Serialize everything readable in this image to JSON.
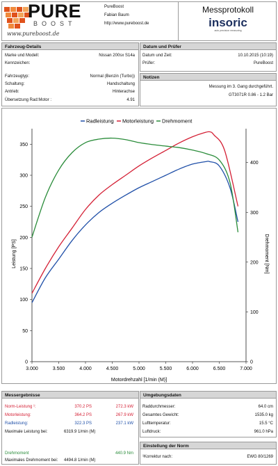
{
  "header": {
    "brand_line1": "PURE",
    "brand_line2": "BOOST",
    "brand_script": "www.pureboost.de",
    "company": "PureBoost",
    "contact": "Fabian Baum",
    "url": "http://www.pureboost.de",
    "protocol_title": "Messprotokoll",
    "logo_text": "insoric",
    "logo_tagline": "auto precision measuring"
  },
  "vehicle": {
    "section_title": "Fahrzeug-Details",
    "fields": [
      {
        "label": "Marke und Modell:",
        "value": "Nissan 200sx S14a"
      },
      {
        "label": "Kennzeichen:",
        "value": ""
      },
      {
        "label": "Fahrzeugtyp:",
        "value": "Normal (Benzin (Turbo))"
      },
      {
        "label": "Schaltung:",
        "value": "Handschaltung"
      },
      {
        "label": "Antrieb:",
        "value": "Hinterachse"
      },
      {
        "label": "Übersetzung Rad:Motor :",
        "value": "4.91"
      }
    ]
  },
  "test": {
    "section_title": "Datum und Prüfer",
    "fields": [
      {
        "label": "Datum und Zeit:",
        "value": "10.10.2015 (10:19)"
      },
      {
        "label": "Prüfer:",
        "value": "PureBoost"
      }
    ]
  },
  "notes": {
    "section_title": "Notizen",
    "line1": "Messung im 3. Gang durchgeführt.",
    "line2": "GT3071R 0.86 - 1.2 Bar"
  },
  "chart_data": {
    "type": "line",
    "xlabel": "Motordrehzahl [1/min (M)]",
    "ylabel": "Leistung [PS]",
    "y2label": "Drehmoment [Nm]",
    "xlim": [
      3000,
      7000
    ],
    "ylim": [
      0,
      375
    ],
    "y2lim": [
      0,
      468
    ],
    "xticks": [
      "3.000",
      "3.500",
      "4.000",
      "4.500",
      "5.000",
      "5.500",
      "6.000",
      "6.500",
      "7.000"
    ],
    "yticks": [
      0,
      50,
      100,
      150,
      200,
      250,
      300,
      350
    ],
    "y2ticks": [
      0,
      100,
      200,
      300,
      400
    ],
    "legend_position": "top",
    "colors": {
      "Radleistung": "#1f4fa8",
      "Motorleistung": "#d42035",
      "Drehmoment": "#2a8c3a"
    },
    "series": [
      {
        "name": "Radleistung",
        "axis": "left",
        "x": [
          3000,
          3250,
          3500,
          3750,
          4000,
          4250,
          4500,
          4750,
          5000,
          5250,
          5500,
          5750,
          6000,
          6250,
          6320,
          6500,
          6700,
          6850
        ],
        "y": [
          95,
          135,
          165,
          195,
          220,
          240,
          255,
          268,
          280,
          290,
          300,
          310,
          318,
          322,
          322,
          315,
          280,
          225
        ]
      },
      {
        "name": "Motorleistung",
        "axis": "left",
        "x": [
          3000,
          3250,
          3500,
          3750,
          4000,
          4250,
          4500,
          4750,
          5000,
          5250,
          5500,
          5750,
          6000,
          6200,
          6320,
          6400,
          6600,
          6850
        ],
        "y": [
          110,
          150,
          185,
          215,
          245,
          268,
          285,
          300,
          315,
          328,
          340,
          352,
          362,
          368,
          370,
          365,
          340,
          250
        ]
      },
      {
        "name": "Drehmoment",
        "axis": "right",
        "x": [
          3000,
          3250,
          3500,
          3750,
          4000,
          4250,
          4500,
          4750,
          5000,
          5250,
          5500,
          5750,
          6000,
          6250,
          6500,
          6700,
          6850
        ],
        "y": [
          250,
          330,
          385,
          420,
          440,
          447,
          449,
          446,
          440,
          436,
          433,
          430,
          425,
          418,
          405,
          360,
          260
        ]
      }
    ]
  },
  "results": {
    "section_title": "Messergebnisse",
    "rows": [
      {
        "label": "Norm-Leistung ¹:",
        "value1": "370.2 PS",
        "value2": "272.3 kW",
        "color": "#d42035"
      },
      {
        "label": "Motorleistung:",
        "value1": "364.2 PS",
        "value2": "267.9 kW",
        "color": "#d42035"
      },
      {
        "label": "Radleistung:",
        "value1": "322.3 PS",
        "value2": "237.1 kW",
        "color": "#1f4fa8"
      }
    ],
    "max_power_label": "Maximale Leistung bei:",
    "max_power_value": "6319.9 1/min (M)",
    "torque_label": "Drehmoment",
    "torque_value": "440.9 Nm",
    "torque_color": "#2a8c3a",
    "max_torque_label": "Maximales Drehmoment bei:",
    "max_torque_value": "4494.8 1/min (M)"
  },
  "environment": {
    "section_title": "Umgebungsdaten",
    "fields": [
      {
        "label": "Raddurchmesser:",
        "value": "64.0 cm"
      },
      {
        "label": "Gesamtes Gewicht:",
        "value": "1535.0 kg"
      },
      {
        "label": "Lufttemperatur:",
        "value": "15.5 °C"
      },
      {
        "label": "Luftdruck:",
        "value": "961.0 hPa"
      }
    ]
  },
  "norm": {
    "section_title": "Einstellung der Norm",
    "label": "¹Korrektur nach:",
    "value": "EWG 80/1269"
  }
}
